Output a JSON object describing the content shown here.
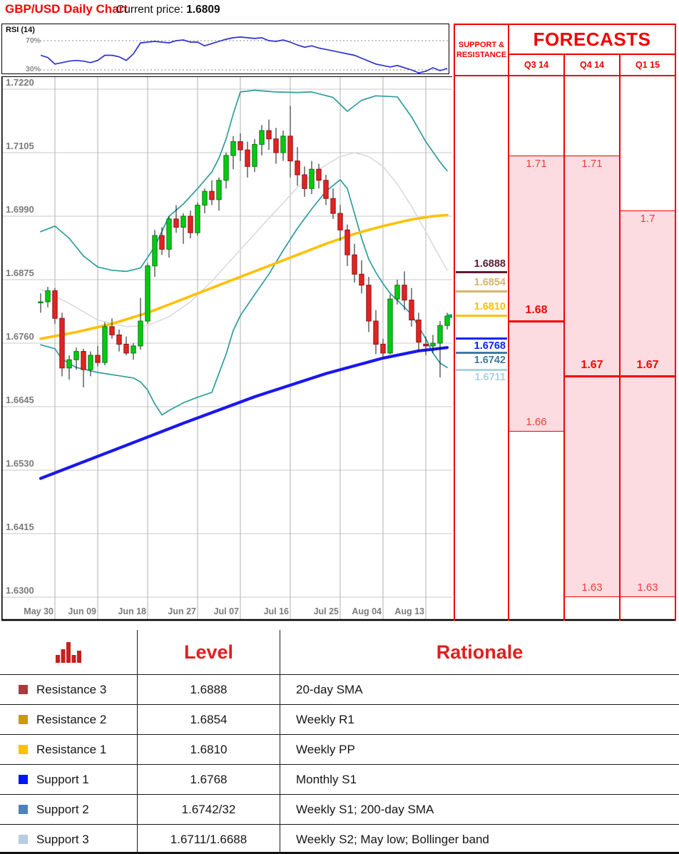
{
  "header": {
    "title": "GBP/USD Daily Chart",
    "current_price_label": "Current price:",
    "current_price": "1.6809"
  },
  "rsi_panel": {
    "label": "RSI (14)",
    "upper_label": "70%",
    "lower_label": "30%"
  },
  "chart_data": {
    "type": "candlestick",
    "title": "GBP/USD Daily Chart",
    "price_axis_range": [
      1.63,
      1.722
    ],
    "y_ticks": [
      1.722,
      1.7105,
      1.699,
      1.6875,
      1.676,
      1.6645,
      1.653,
      1.6415,
      1.63
    ],
    "y_tick_labels": [
      "1.7220",
      "1.7105",
      "1.6990",
      "1.6875",
      "1.6760",
      "1.6645",
      "1.6530",
      "1.6415",
      "1.6300"
    ],
    "x_labels": [
      "May 30",
      "Jun 09",
      "Jun 18",
      "Jun 27",
      "Jul 07",
      "Jul 16",
      "Jul 25",
      "Aug 04",
      "Aug 13"
    ],
    "x_label_indices": [
      2,
      8,
      15,
      22,
      28,
      35,
      42,
      48,
      54
    ],
    "last_price": 1.6809,
    "candles": [
      [
        1.6833,
        1.685,
        1.6815,
        1.6835
      ],
      [
        1.6835,
        1.6862,
        1.6825,
        1.6855
      ],
      [
        1.6855,
        1.686,
        1.6795,
        1.6805
      ],
      [
        1.6805,
        1.6815,
        1.67,
        1.6715
      ],
      [
        1.6715,
        1.6738,
        1.6694,
        1.673
      ],
      [
        1.673,
        1.6752,
        1.6712,
        1.6745
      ],
      [
        1.6745,
        1.675,
        1.668,
        1.6712
      ],
      [
        1.6712,
        1.6745,
        1.67,
        1.6738
      ],
      [
        1.6738,
        1.6755,
        1.6718,
        1.6725
      ],
      [
        1.6725,
        1.6798,
        1.672,
        1.679
      ],
      [
        1.679,
        1.6805,
        1.6768,
        1.6775
      ],
      [
        1.6775,
        1.6785,
        1.6745,
        1.6758
      ],
      [
        1.6758,
        1.6772,
        1.6738,
        1.6742
      ],
      [
        1.6742,
        1.676,
        1.673,
        1.6755
      ],
      [
        1.6755,
        1.6842,
        1.6748,
        1.68
      ],
      [
        1.68,
        1.6905,
        1.6795,
        1.69
      ],
      [
        1.69,
        1.6965,
        1.688,
        1.6955
      ],
      [
        1.6955,
        1.697,
        1.692,
        1.693
      ],
      [
        1.693,
        1.699,
        1.6915,
        1.6985
      ],
      [
        1.6985,
        1.701,
        1.696,
        1.697
      ],
      [
        1.697,
        1.6995,
        1.694,
        1.699
      ],
      [
        1.699,
        1.7,
        1.695,
        1.696
      ],
      [
        1.696,
        1.7015,
        1.6955,
        1.701
      ],
      [
        1.701,
        1.704,
        1.6995,
        1.7035
      ],
      [
        1.7035,
        1.7055,
        1.701,
        1.702
      ],
      [
        1.702,
        1.706,
        1.7,
        1.7055
      ],
      [
        1.7055,
        1.7105,
        1.704,
        1.71
      ],
      [
        1.71,
        1.7135,
        1.7075,
        1.7125
      ],
      [
        1.7125,
        1.714,
        1.709,
        1.711
      ],
      [
        1.711,
        1.7125,
        1.706,
        1.708
      ],
      [
        1.708,
        1.713,
        1.707,
        1.712
      ],
      [
        1.712,
        1.7155,
        1.71,
        1.7145
      ],
      [
        1.7145,
        1.7165,
        1.711,
        1.713
      ],
      [
        1.713,
        1.715,
        1.7085,
        1.7105
      ],
      [
        1.7105,
        1.7145,
        1.709,
        1.7135
      ],
      [
        1.7135,
        1.719,
        1.706,
        1.709
      ],
      [
        1.709,
        1.7115,
        1.7045,
        1.7065
      ],
      [
        1.7065,
        1.708,
        1.7025,
        1.704
      ],
      [
        1.704,
        1.709,
        1.703,
        1.7075
      ],
      [
        1.7075,
        1.7085,
        1.704,
        1.7055
      ],
      [
        1.7055,
        1.7065,
        1.701,
        1.7022
      ],
      [
        1.7022,
        1.704,
        1.6985,
        1.6995
      ],
      [
        1.6995,
        1.701,
        1.6945,
        1.6965
      ],
      [
        1.6965,
        1.6975,
        1.69,
        1.692
      ],
      [
        1.692,
        1.694,
        1.687,
        1.6885
      ],
      [
        1.6885,
        1.691,
        1.685,
        1.6865
      ],
      [
        1.6865,
        1.688,
        1.678,
        1.68
      ],
      [
        1.68,
        1.682,
        1.674,
        1.6758
      ],
      [
        1.6758,
        1.6768,
        1.6735,
        1.6742
      ],
      [
        1.6742,
        1.6848,
        1.674,
        1.684
      ],
      [
        1.684,
        1.6875,
        1.683,
        1.6865
      ],
      [
        1.6865,
        1.689,
        1.682,
        1.6838
      ],
      [
        1.6838,
        1.686,
        1.679,
        1.6802
      ],
      [
        1.6802,
        1.6815,
        1.6745,
        1.6762
      ],
      [
        1.6758,
        1.6772,
        1.6738,
        1.6755
      ],
      [
        1.6755,
        1.6775,
        1.6742,
        1.676
      ],
      [
        1.676,
        1.68,
        1.6698,
        1.6792
      ],
      [
        1.6792,
        1.6815,
        1.6785,
        1.6809
      ]
    ],
    "overlays": {
      "bollinger_upper": [
        [
          0,
          1.6962
        ],
        [
          2,
          1.6972
        ],
        [
          4,
          1.695
        ],
        [
          6,
          1.6918
        ],
        [
          8,
          1.6898
        ],
        [
          10,
          1.6892
        ],
        [
          12,
          1.689
        ],
        [
          14,
          1.6896
        ],
        [
          16,
          1.6935
        ],
        [
          18,
          1.699
        ],
        [
          20,
          1.7012
        ],
        [
          22,
          1.704
        ],
        [
          24,
          1.707
        ],
        [
          25,
          1.7095
        ],
        [
          26,
          1.713
        ],
        [
          27,
          1.7175
        ],
        [
          28,
          1.7215
        ],
        [
          30,
          1.7218
        ],
        [
          33,
          1.7215
        ],
        [
          36,
          1.7214
        ],
        [
          38,
          1.7215
        ],
        [
          41,
          1.7205
        ],
        [
          43,
          1.718
        ],
        [
          45,
          1.72
        ],
        [
          47,
          1.7208
        ],
        [
          50,
          1.7206
        ],
        [
          52,
          1.717
        ],
        [
          54,
          1.7125
        ],
        [
          56,
          1.7088
        ],
        [
          57,
          1.7072
        ]
      ],
      "bollinger_lower": [
        [
          0,
          1.6757
        ],
        [
          2,
          1.675
        ],
        [
          3,
          1.6731
        ],
        [
          5,
          1.6716
        ],
        [
          8,
          1.6707
        ],
        [
          11,
          1.6701
        ],
        [
          13,
          1.6697
        ],
        [
          14,
          1.669
        ],
        [
          15,
          1.6675
        ],
        [
          16,
          1.665
        ],
        [
          17,
          1.663
        ],
        [
          18,
          1.6638
        ],
        [
          20,
          1.6652
        ],
        [
          22,
          1.6662
        ],
        [
          24,
          1.6671
        ],
        [
          26,
          1.674
        ],
        [
          27,
          1.6783
        ],
        [
          28,
          1.681
        ],
        [
          30,
          1.6848
        ],
        [
          32,
          1.6885
        ],
        [
          34,
          1.6928
        ],
        [
          36,
          1.6968
        ],
        [
          38,
          1.7003
        ],
        [
          40,
          1.7035
        ],
        [
          42,
          1.7056
        ],
        [
          43,
          1.704
        ],
        [
          44,
          1.6995
        ],
        [
          45,
          1.695
        ],
        [
          46,
          1.6912
        ],
        [
          47,
          1.6888
        ],
        [
          48,
          1.6868
        ],
        [
          49,
          1.685
        ],
        [
          50,
          1.6838
        ],
        [
          51,
          1.6825
        ],
        [
          52,
          1.6812
        ],
        [
          53,
          1.679
        ],
        [
          54,
          1.6768
        ],
        [
          55,
          1.6742
        ],
        [
          56,
          1.6724
        ],
        [
          57,
          1.6716
        ]
      ],
      "sma20": [
        [
          0,
          1.6858
        ],
        [
          4,
          1.6832
        ],
        [
          8,
          1.6802
        ],
        [
          12,
          1.679
        ],
        [
          15,
          1.6792
        ],
        [
          18,
          1.6808
        ],
        [
          21,
          1.6835
        ],
        [
          24,
          1.6872
        ],
        [
          27,
          1.6915
        ],
        [
          30,
          1.6958
        ],
        [
          33,
          1.7
        ],
        [
          36,
          1.7042
        ],
        [
          39,
          1.7075
        ],
        [
          42,
          1.7098
        ],
        [
          44,
          1.7105
        ],
        [
          46,
          1.7098
        ],
        [
          48,
          1.708
        ],
        [
          50,
          1.7048
        ],
        [
          52,
          1.7008
        ],
        [
          54,
          1.6962
        ],
        [
          56,
          1.6915
        ],
        [
          57,
          1.6892
        ]
      ],
      "sma55": [
        [
          0,
          1.6768
        ],
        [
          5,
          1.678
        ],
        [
          10,
          1.6795
        ],
        [
          15,
          1.6815
        ],
        [
          20,
          1.684
        ],
        [
          25,
          1.6865
        ],
        [
          28,
          1.688
        ],
        [
          32,
          1.69
        ],
        [
          36,
          1.692
        ],
        [
          40,
          1.694
        ],
        [
          44,
          1.6958
        ],
        [
          48,
          1.6972
        ],
        [
          52,
          1.6984
        ],
        [
          55,
          1.699
        ],
        [
          57,
          1.6992
        ]
      ],
      "sma200": [
        [
          0,
          1.6515
        ],
        [
          10,
          1.6565
        ],
        [
          20,
          1.6615
        ],
        [
          30,
          1.6663
        ],
        [
          40,
          1.6705
        ],
        [
          48,
          1.6733
        ],
        [
          53,
          1.6746
        ],
        [
          57,
          1.6752
        ]
      ]
    },
    "rsi": {
      "label": "RSI (14)",
      "levels": [
        70,
        30
      ],
      "values": [
        50,
        47,
        38,
        40,
        42,
        43,
        42,
        40,
        43,
        50,
        50,
        48,
        43,
        52,
        67,
        68,
        69,
        68,
        67,
        70,
        71,
        68,
        68,
        63,
        66,
        69,
        72,
        74,
        75,
        74,
        73,
        74,
        70,
        69,
        71,
        68,
        64,
        61,
        63,
        60,
        58,
        56,
        54,
        52,
        50,
        46,
        42,
        38,
        36,
        34,
        36,
        33,
        30,
        26,
        28,
        33,
        29,
        32
      ]
    }
  },
  "support_resistance": {
    "header": "SUPPORT & RESISTANCE",
    "levels": [
      {
        "label": "1.6888",
        "price": 1.6888,
        "color": "#5e1a38",
        "label_side": "above"
      },
      {
        "label": "1.6854",
        "price": 1.6854,
        "color": "#d7b469",
        "label_side": "above"
      },
      {
        "label": "1.6810",
        "price": 1.681,
        "color": "#ffc000",
        "label_side": "above"
      },
      {
        "label": "1.6768",
        "price": 1.6768,
        "color": "#0b24fb",
        "label_side": "below"
      },
      {
        "label": "1.6742",
        "price": 1.6742,
        "color": "#3d7ba6",
        "label_side": "below"
      },
      {
        "label": "1.6711",
        "price": 1.6711,
        "color": "#a9d3de",
        "label_side": "below"
      }
    ]
  },
  "forecasts": {
    "title": "FORECASTS",
    "columns": [
      {
        "label": "Q3 14",
        "high": 1.71,
        "low": 1.66,
        "target": 1.68,
        "high_label": "1.71",
        "low_label": "1.66",
        "target_label": "1.68"
      },
      {
        "label": "Q4 14",
        "high": 1.71,
        "low": 1.63,
        "target": 1.67,
        "high_label": "1.71",
        "low_label": "1.63",
        "target_label": "1.67"
      },
      {
        "label": "Q1 15",
        "high": 1.7,
        "low": 1.63,
        "target": 1.67,
        "high_label": "1.7",
        "low_label": "1.63",
        "target_label": "1.67"
      }
    ]
  },
  "levels_table": {
    "level_header": "Level",
    "rationale_header": "Rationale",
    "rows": [
      {
        "name": "Resistance 3",
        "swatch": "#a33e3e",
        "level": "1.6888",
        "rationale": "20-day SMA"
      },
      {
        "name": "Resistance 2",
        "swatch": "#cc9a00",
        "level": "1.6854",
        "rationale": "Weekly R1"
      },
      {
        "name": "Resistance 1",
        "swatch": "#ffc000",
        "level": "1.6810",
        "rationale": "Weekly PP"
      },
      {
        "name": "Support 1",
        "swatch": "#0014fa",
        "level": "1.6768",
        "rationale": "Monthly S1"
      },
      {
        "name": "Support 2",
        "swatch": "#4f81bd",
        "level": "1.6742/32",
        "rationale": "Weekly S1; 200-day SMA"
      },
      {
        "name": "Support 3",
        "swatch": "#b8cce4",
        "level": "1.6711/1.6688",
        "rationale": "Weekly S2; May low; Bollinger band"
      }
    ]
  },
  "colors": {
    "accent_red": "#f20000",
    "candle_up": "#00cc11",
    "candle_down": "#e32222",
    "bollinger": "#2f9c9c",
    "sma55": "#ffc000",
    "sma200": "#1a17f0",
    "sma20": "#dadada",
    "rsi_line": "#2f2fd0",
    "forecast_fill": "#fcdce1",
    "grid": "#c9c9c9",
    "axis_text": "#7b7b7b",
    "marker_green": "#00b050"
  }
}
